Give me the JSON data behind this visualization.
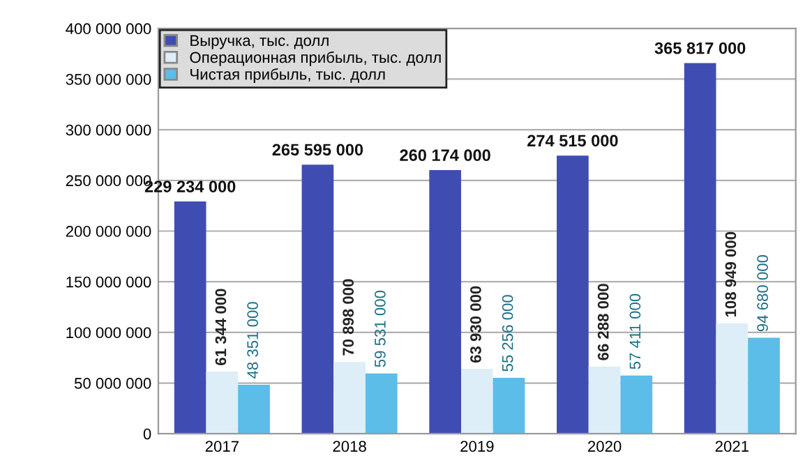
{
  "chart_data": {
    "type": "bar",
    "categories": [
      "2017",
      "2018",
      "2019",
      "2020",
      "2021"
    ],
    "series": [
      {
        "name": "Выручка, тыс. долл",
        "color": "#3f4db3",
        "values": [
          229234000,
          265595000,
          260174000,
          274515000,
          365817000
        ],
        "value_labels": [
          "229 234 000",
          "265 595 000",
          "260 174 000",
          "274 515 000",
          "365 817 000"
        ]
      },
      {
        "name": "Операционная прибыль, тыс. долл",
        "color": "#ddeef9",
        "values": [
          61344000,
          70898000,
          63930000,
          66288000,
          108949000
        ],
        "value_labels": [
          "61 344 000",
          "70 898 000",
          "63 930 000",
          "66 288 000",
          "108 949 000"
        ]
      },
      {
        "name": "Чистая прибыль, тыс. долл",
        "color": "#5bbde8",
        "values": [
          48351000,
          59531000,
          55256000,
          57411000,
          94680000
        ],
        "value_labels": [
          "48 351 000",
          "59 531 000",
          "55 256 000",
          "57 411 000",
          "94 680 000"
        ]
      }
    ],
    "ylim": [
      0,
      400000000
    ],
    "yticks": [
      0,
      {
        "value": 50000000,
        "label": "50 000 000"
      },
      {
        "value": 100000000,
        "label": "100 000 000"
      },
      {
        "value": 150000000,
        "label": "150 000 000"
      },
      {
        "value": 200000000,
        "label": "200 000 000"
      },
      {
        "value": 250000000,
        "label": "250 000 000"
      },
      {
        "value": 300000000,
        "label": "300 000 000"
      },
      {
        "value": 350000000,
        "label": "350 000 000"
      },
      {
        "value": 400000000,
        "label": "400 000 000"
      }
    ],
    "grid": "y",
    "legend": "top left"
  }
}
